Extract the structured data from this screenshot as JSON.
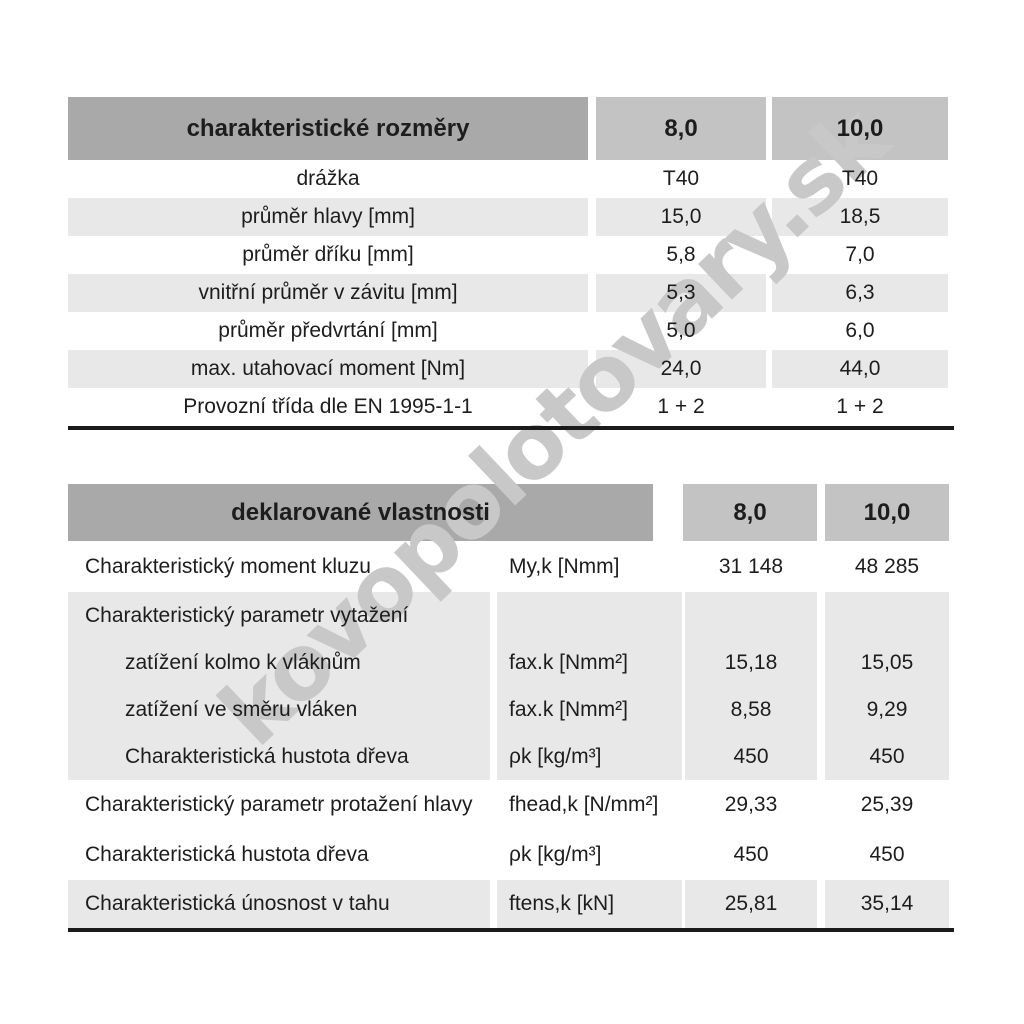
{
  "watermark": {
    "text": "kovopolotovary.sk",
    "color": "#c8c8c8"
  },
  "colors": {
    "header_dark": "#a9a9a9",
    "header_light": "#c3c3c3",
    "row_shaded": "#e8e8e8",
    "rule": "#1a1a1a",
    "text": "#1d1d1d"
  },
  "table1": {
    "title": "charakteristické rozměry",
    "columns": [
      "8,0",
      "10,0"
    ],
    "rows": [
      {
        "label": "drážka",
        "values": [
          "T40",
          "T40"
        ]
      },
      {
        "label": "průměr hlavy [mm]",
        "values": [
          "15,0",
          "18,5"
        ]
      },
      {
        "label": "průměr dříku [mm]",
        "values": [
          "5,8",
          "7,0"
        ]
      },
      {
        "label": "vnitřní průměr v závitu [mm]",
        "values": [
          "5,3",
          "6,3"
        ]
      },
      {
        "label": "průměr předvrtání [mm]",
        "values": [
          "5,0",
          "6,0"
        ]
      },
      {
        "label": "max. utahovací moment [Nm]",
        "values": [
          "24,0",
          "44,0"
        ]
      },
      {
        "label": "Provozní třída dle EN 1995-1-1",
        "values": [
          "1 + 2",
          "1 + 2"
        ]
      }
    ]
  },
  "table2": {
    "title": "deklarované vlastnosti",
    "columns": [
      "8,0",
      "10,0"
    ],
    "rows": [
      {
        "label": "Charakteristický moment kluzu",
        "unit": "My,k [Nmm]",
        "values": [
          "31 148",
          "48 285"
        ]
      },
      {
        "label": "Charakteristický parametr vytažení",
        "unit": "",
        "values": [
          "",
          ""
        ]
      },
      {
        "label": "zatížení kolmo k vláknům",
        "unit": "fax.k [Nmm²]",
        "values": [
          "15,18",
          "15,05"
        ]
      },
      {
        "label": "zatížení ve směru vláken",
        "unit": "fax.k [Nmm²]",
        "values": [
          "8,58",
          "9,29"
        ]
      },
      {
        "label": "Charakteristická hustota dřeva",
        "unit": "ρk [kg/m³]",
        "values": [
          "450",
          "450"
        ]
      },
      {
        "label": "Charakteristický parametr protažení hlavy",
        "unit": "fhead,k [N/mm²]",
        "values": [
          "29,33",
          "25,39"
        ]
      },
      {
        "label": "Charakteristická hustota dřeva",
        "unit": "ρk [kg/m³]",
        "values": [
          "450",
          "450"
        ]
      },
      {
        "label": "Charakteristická únosnost v tahu",
        "unit": "ftens,k [kN]",
        "values": [
          "25,81",
          "35,14"
        ]
      }
    ]
  }
}
